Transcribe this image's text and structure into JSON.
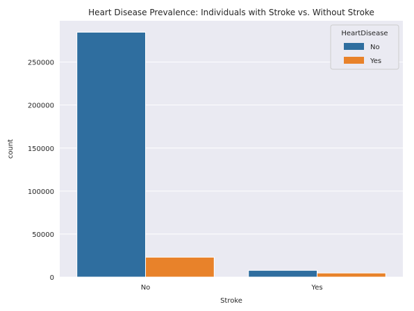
{
  "chart_data": {
    "type": "bar",
    "title": "Heart Disease Prevalence: Individuals with Stroke vs. Without Stroke",
    "xlabel": "Stroke",
    "ylabel": "count",
    "categories": [
      "No",
      "Yes"
    ],
    "series": [
      {
        "name": "No",
        "values": [
          284700,
          7800
        ]
      },
      {
        "name": "Yes",
        "values": [
          23100,
          4700
        ]
      }
    ],
    "ylim": [
      0,
      298000
    ],
    "yticks": [
      0,
      50000,
      100000,
      150000,
      200000,
      250000
    ],
    "legend": {
      "title": "HeartDisease",
      "placement": "top-right"
    },
    "grid": true,
    "colors": {
      "No": "#2f6e9f",
      "Yes": "#e8822a",
      "background": "#eaeaf2",
      "grid": "#ffffff"
    }
  }
}
